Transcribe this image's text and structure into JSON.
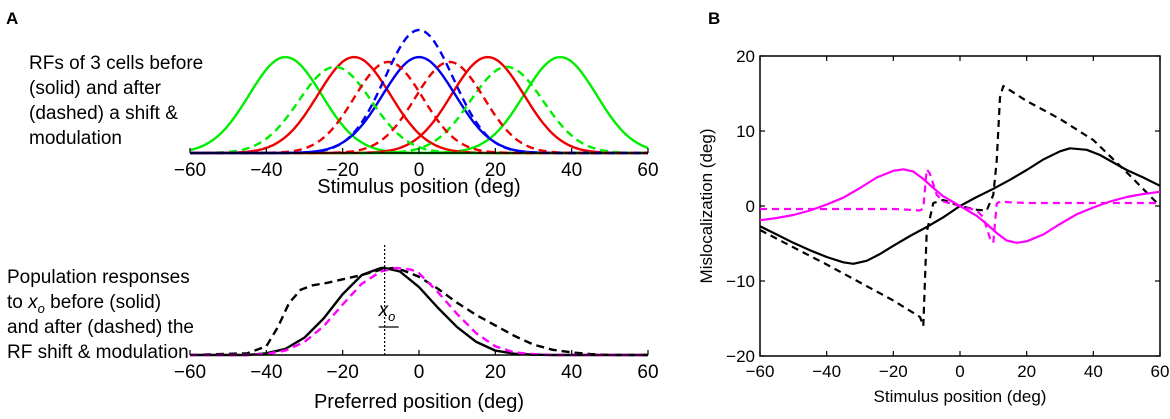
{
  "panels": {
    "a_label": "A",
    "b_label": "B"
  },
  "chart_data": [
    {
      "id": "A-top",
      "type": "line",
      "title": "",
      "annotation_lines": [
        "RFs of 3 cells before",
        "(solid) and after",
        "(dashed) a shift &",
        "modulation"
      ],
      "xlabel": "Stimulus position (deg)",
      "ylabel": "",
      "xlim": [
        -60,
        60
      ],
      "ylim": [
        0,
        1.0
      ],
      "xticks": [
        -60,
        -40,
        -20,
        0,
        20,
        40,
        60
      ],
      "grid": false,
      "series": [
        {
          "name": "green solid left",
          "color": "#00ee00",
          "style": "solid",
          "center": -35,
          "sigma": 9.5,
          "amp": 0.78
        },
        {
          "name": "green solid right",
          "color": "#00ee00",
          "style": "solid",
          "center": 37,
          "sigma": 9.5,
          "amp": 0.78
        },
        {
          "name": "red solid left",
          "color": "#ee0000",
          "style": "solid",
          "center": -17,
          "sigma": 9.5,
          "amp": 0.78
        },
        {
          "name": "red solid right",
          "color": "#ee0000",
          "style": "solid",
          "center": 18,
          "sigma": 9.5,
          "amp": 0.78
        },
        {
          "name": "blue solid",
          "color": "#0000ee",
          "style": "solid",
          "center": 0,
          "sigma": 9.5,
          "amp": 0.78
        },
        {
          "name": "green dashed left",
          "color": "#00ee00",
          "style": "dashed",
          "center": -22,
          "sigma": 9.5,
          "amp": 0.7
        },
        {
          "name": "green dashed right",
          "color": "#00ee00",
          "style": "dashed",
          "center": 23,
          "sigma": 9.5,
          "amp": 0.7
        },
        {
          "name": "red dashed left",
          "color": "#ee0000",
          "style": "dashed",
          "center": -8,
          "sigma": 9,
          "amp": 0.74
        },
        {
          "name": "red dashed right",
          "color": "#ee0000",
          "style": "dashed",
          "center": 8,
          "sigma": 9,
          "amp": 0.74
        },
        {
          "name": "blue dashed",
          "color": "#0000ee",
          "style": "dashed",
          "center": 0,
          "sigma": 9,
          "amp": 1.0
        }
      ]
    },
    {
      "id": "A-bottom",
      "type": "line",
      "title": "",
      "annotation_lines": [
        "Population responses",
        "to x_o before (solid)",
        "and after (dashed) the",
        "RF shift & modulation"
      ],
      "annotation_var": "x",
      "annotation_sub": "o",
      "marker_label": "x",
      "marker_sub": "o",
      "marker_x": -9,
      "xlabel": "Preferred position (deg)",
      "ylabel": "",
      "xlim": [
        -60,
        60
      ],
      "ylim": [
        0,
        1.0
      ],
      "xticks": [
        -60,
        -40,
        -20,
        0,
        20,
        40,
        60
      ],
      "grid": false,
      "series": [
        {
          "name": "before (solid)",
          "color": "#000000",
          "style": "solid",
          "x": [
            -60,
            -45,
            -40,
            -35,
            -30,
            -25,
            -20,
            -15,
            -10,
            -9,
            -5,
            0,
            5,
            10,
            15,
            20,
            25,
            30,
            35,
            40,
            60
          ],
          "y": [
            0,
            0.0,
            0.02,
            0.07,
            0.2,
            0.42,
            0.7,
            0.92,
            1.0,
            1.0,
            0.96,
            0.78,
            0.54,
            0.32,
            0.15,
            0.05,
            0.015,
            0.003,
            0,
            0,
            0
          ]
        },
        {
          "name": "after (dashed) black",
          "color": "#000000",
          "style": "dashed",
          "x": [
            -60,
            -45,
            -40,
            -37,
            -34,
            -31,
            -28,
            -24,
            -20,
            -15,
            -10,
            -7,
            -4,
            0,
            5,
            10,
            15,
            20,
            25,
            30,
            35,
            40,
            45,
            50,
            60
          ],
          "y": [
            0,
            0.02,
            0.1,
            0.32,
            0.6,
            0.75,
            0.8,
            0.83,
            0.87,
            0.92,
            0.98,
            1.0,
            0.97,
            0.9,
            0.76,
            0.6,
            0.46,
            0.34,
            0.22,
            0.12,
            0.06,
            0.03,
            0.01,
            0,
            0
          ]
        },
        {
          "name": "after (dashed) magenta",
          "color": "#ff00ff",
          "style": "dashed",
          "x": [
            -60,
            -45,
            -40,
            -35,
            -30,
            -25,
            -20,
            -15,
            -10,
            -6,
            -2,
            0,
            5,
            10,
            15,
            20,
            25,
            30,
            35,
            40,
            60
          ],
          "y": [
            0,
            0.0,
            0.01,
            0.05,
            0.15,
            0.33,
            0.58,
            0.82,
            0.96,
            1.0,
            0.98,
            0.94,
            0.72,
            0.47,
            0.25,
            0.1,
            0.03,
            0.01,
            0,
            0,
            0
          ]
        }
      ]
    },
    {
      "id": "B",
      "type": "line",
      "title": "",
      "xlabel": "Stimulus position (deg)",
      "ylabel": "Mislocalization (deg)",
      "xlim": [
        -60,
        60
      ],
      "ylim": [
        -20,
        20
      ],
      "xticks": [
        -60,
        -40,
        -20,
        0,
        20,
        40,
        60
      ],
      "yticks": [
        -20,
        -10,
        0,
        10,
        20
      ],
      "grid": false,
      "series": [
        {
          "name": "black solid",
          "color": "#000000",
          "style": "solid",
          "x": [
            -60,
            -55,
            -50,
            -45,
            -40,
            -35,
            -32,
            -28,
            -24,
            -20,
            -15,
            -10,
            -5,
            0,
            5,
            10,
            15,
            20,
            25,
            30,
            33,
            38,
            42,
            46,
            50,
            55,
            60
          ],
          "y": [
            -2.7,
            -3.8,
            -4.9,
            -5.9,
            -6.8,
            -7.5,
            -7.7,
            -7.3,
            -6.4,
            -5.3,
            -4.0,
            -2.8,
            -1.5,
            0,
            1.2,
            2.3,
            3.5,
            4.8,
            6.2,
            7.3,
            7.7,
            7.5,
            6.8,
            5.8,
            4.8,
            3.8,
            2.7
          ]
        },
        {
          "name": "black dashed",
          "color": "#000000",
          "style": "dashed",
          "x": [
            -60,
            -50,
            -40,
            -30,
            -20,
            -12,
            -11,
            -10,
            -8,
            -5,
            0,
            5,
            8,
            10,
            11,
            12,
            13,
            20,
            30,
            40,
            50,
            60
          ],
          "y": [
            -3.2,
            -5.5,
            -7.8,
            -10.2,
            -12.6,
            -14.8,
            -16.0,
            -3.5,
            0.4,
            0.8,
            0,
            -0.5,
            -0.6,
            1.5,
            6,
            14.5,
            16,
            14,
            11.6,
            8.8,
            4.5,
            0
          ]
        },
        {
          "name": "magenta solid",
          "color": "#ff00ff",
          "style": "solid",
          "x": [
            -60,
            -55,
            -50,
            -45,
            -40,
            -35,
            -30,
            -25,
            -20,
            -17,
            -14,
            -11,
            -8,
            -5,
            0,
            5,
            8,
            11,
            14,
            17,
            20,
            25,
            30,
            35,
            40,
            45,
            50,
            55,
            60
          ],
          "y": [
            -1.9,
            -1.6,
            -1.2,
            -0.6,
            0.2,
            1.1,
            2.4,
            3.8,
            4.7,
            4.9,
            4.6,
            3.6,
            2.4,
            1.3,
            0,
            -1.3,
            -2.4,
            -3.6,
            -4.6,
            -4.9,
            -4.7,
            -3.8,
            -2.4,
            -1.1,
            -0.2,
            0.6,
            1.2,
            1.6,
            1.9
          ]
        },
        {
          "name": "magenta dashed",
          "color": "#ff00ff",
          "style": "dashed",
          "x": [
            -60,
            -40,
            -20,
            -15,
            -12,
            -11,
            -10,
            -9,
            -7,
            -5,
            -1,
            0,
            1,
            5,
            7,
            9,
            10,
            11,
            12,
            15,
            20,
            40,
            60
          ],
          "y": [
            -0.4,
            -0.4,
            -0.4,
            -0.5,
            -0.6,
            -0.3,
            4.9,
            4.3,
            1.5,
            0.6,
            0.1,
            0,
            -0.1,
            -0.6,
            -1.5,
            -4.3,
            -4.9,
            0.3,
            0.6,
            0.5,
            0.4,
            0.4,
            0.4
          ]
        }
      ]
    }
  ]
}
